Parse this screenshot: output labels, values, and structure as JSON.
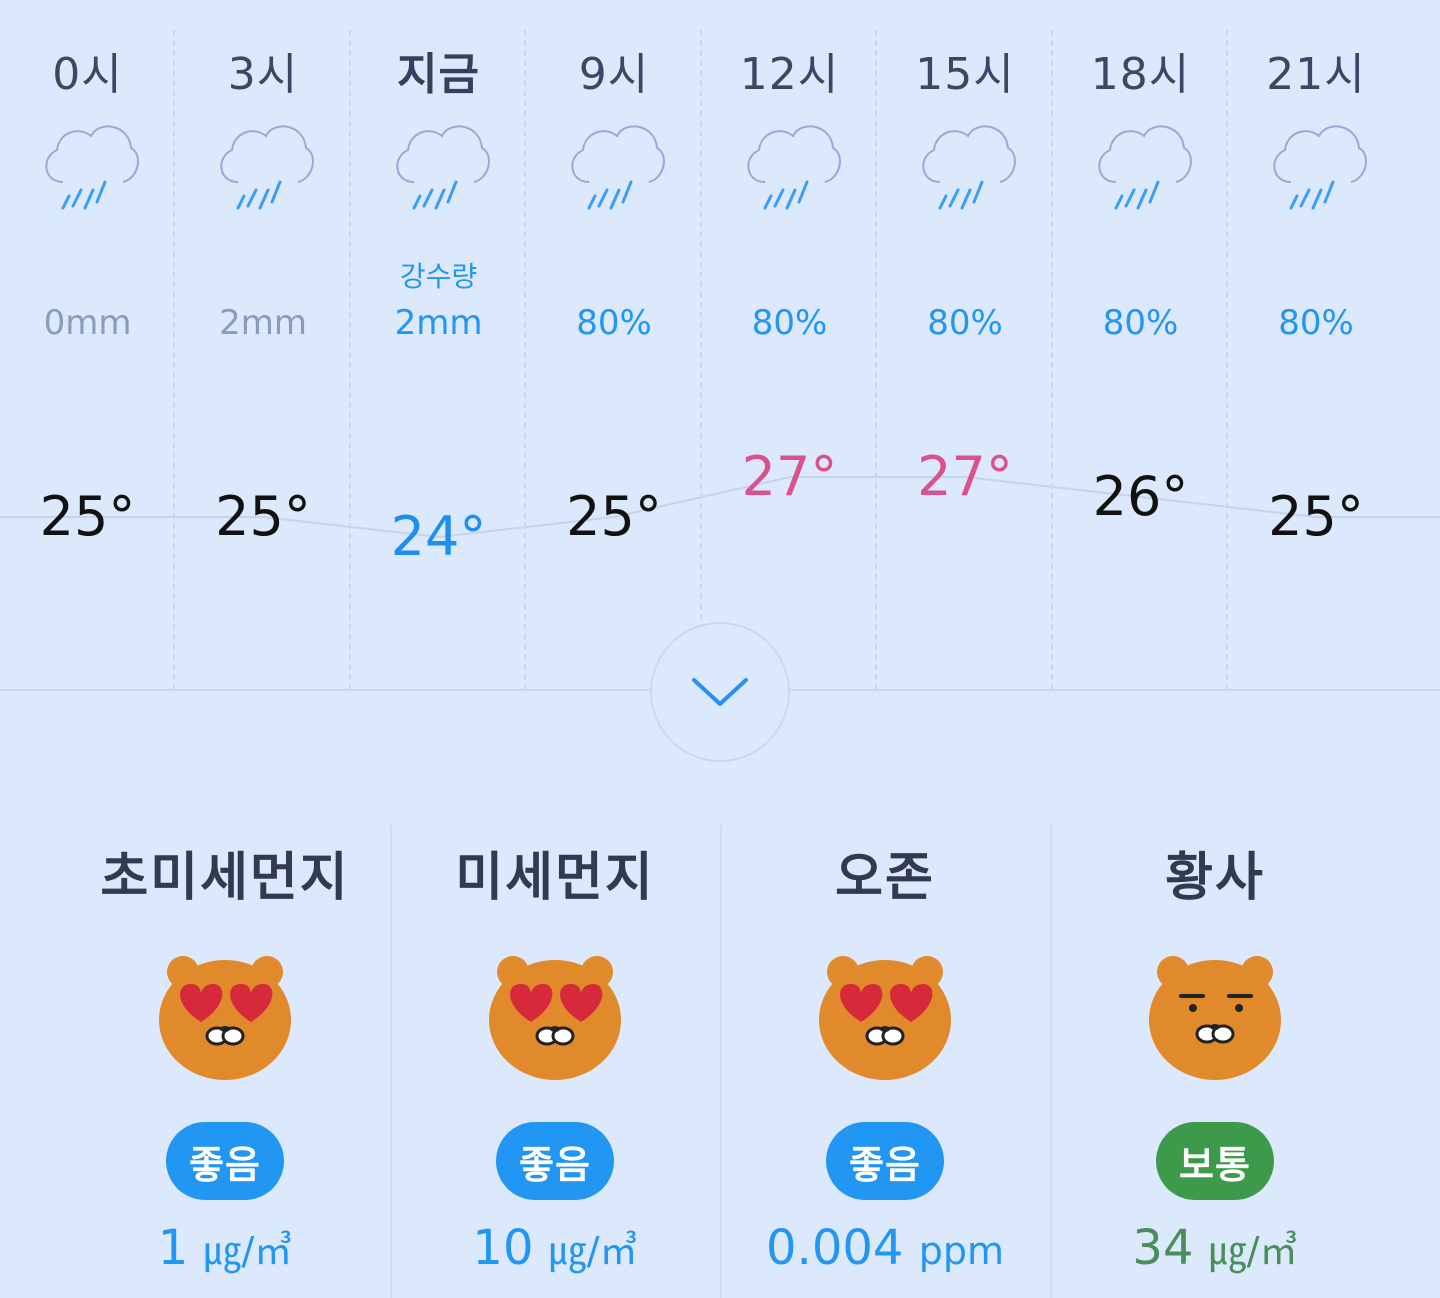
{
  "colors": {
    "background": "#dce8fb",
    "good": "#2196f3",
    "normal": "#3d9a4a",
    "normal_text": "#4a8f5a",
    "temp_low": "#1e8ef0",
    "temp_high": "#d9528d"
  },
  "hourly": {
    "precip_label": "강수량",
    "items": [
      {
        "hour": "0시",
        "icon": "rain-cloud-icon",
        "precip": "0mm",
        "temp": "25°",
        "temp_value": 25
      },
      {
        "hour": "3시",
        "icon": "rain-cloud-icon",
        "precip": "2mm",
        "temp": "25°",
        "temp_value": 25
      },
      {
        "hour": "지금",
        "icon": "rain-cloud-icon",
        "precip": "2mm",
        "temp": "24°",
        "temp_value": 24
      },
      {
        "hour": "9시",
        "icon": "rain-cloud-icon",
        "precip": "80%",
        "temp": "25°",
        "temp_value": 25
      },
      {
        "hour": "12시",
        "icon": "rain-cloud-icon",
        "precip": "80%",
        "temp": "27°",
        "temp_value": 27
      },
      {
        "hour": "15시",
        "icon": "rain-cloud-icon",
        "precip": "80%",
        "temp": "27°",
        "temp_value": 27
      },
      {
        "hour": "18시",
        "icon": "rain-cloud-icon",
        "precip": "80%",
        "temp": "26°",
        "temp_value": 26
      },
      {
        "hour": "21시",
        "icon": "rain-cloud-icon",
        "precip": "80%",
        "temp": "25°",
        "temp_value": 25
      }
    ]
  },
  "expand_icon": "chevron-down-icon",
  "air_quality": [
    {
      "name": "초미세먼지",
      "face": "ryan-heart-eyes-icon",
      "status": "좋음",
      "value": "1",
      "unit": "㎍/㎥",
      "level": "good"
    },
    {
      "name": "미세먼지",
      "face": "ryan-heart-eyes-icon",
      "status": "좋음",
      "value": "10",
      "unit": "㎍/㎥",
      "level": "good"
    },
    {
      "name": "오존",
      "face": "ryan-heart-eyes-icon",
      "status": "좋음",
      "value": "0.004",
      "unit": "ppm",
      "level": "good"
    },
    {
      "name": "황사",
      "face": "ryan-neutral-icon",
      "status": "보통",
      "value": "34",
      "unit": "㎍/㎥",
      "level": "normal"
    }
  ]
}
